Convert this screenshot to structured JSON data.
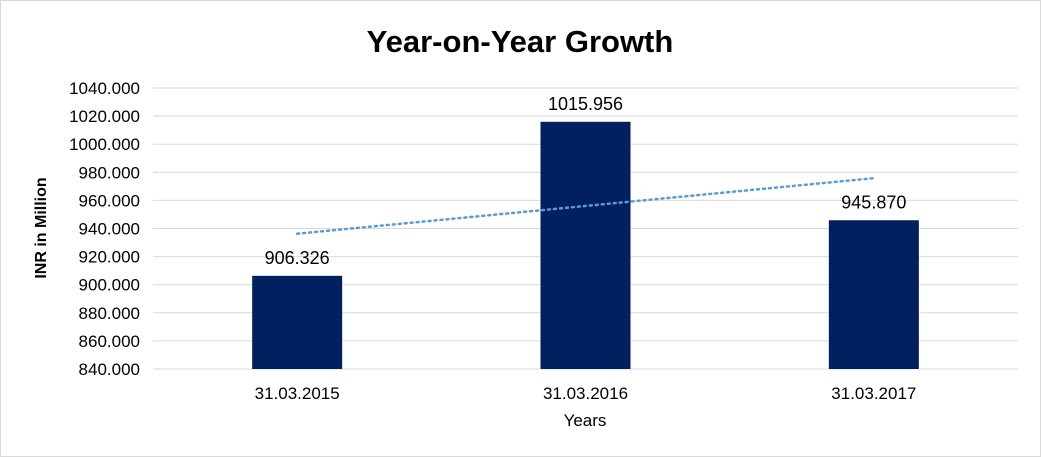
{
  "chart_data": {
    "type": "bar",
    "title": "Year-on-Year Growth",
    "xlabel": "Years",
    "ylabel": "INR in Million",
    "categories": [
      "31.03.2015",
      "31.03.2016",
      "31.03.2017"
    ],
    "values": [
      906.326,
      1015.956,
      945.87
    ],
    "data_labels": [
      "906.326",
      "1015.956",
      "945.870"
    ],
    "ylim": [
      840,
      1040
    ],
    "yticks": [
      "840.000",
      "860.000",
      "880.000",
      "900.000",
      "920.000",
      "940.000",
      "960.000",
      "980.000",
      "1000.000",
      "1020.000",
      "1040.000"
    ],
    "ytick_step": 20,
    "grid": true,
    "legend": "none",
    "trendline": {
      "type": "linear",
      "style": "dotted"
    },
    "colors": {
      "bar": "#002060",
      "trendline": "#5B9BD5",
      "grid": "#D9D9D9"
    }
  }
}
